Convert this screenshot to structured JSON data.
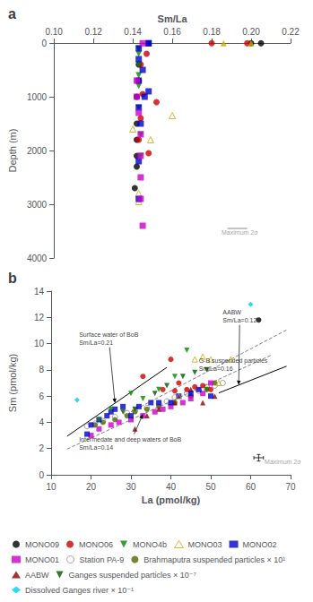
{
  "chart_data": [
    {
      "type": "scatter",
      "title": "a",
      "xlabel": "Sm/La",
      "ylabel": "Depth (m)",
      "xlim": [
        0.1,
        0.22
      ],
      "ylim": [
        4000,
        0
      ],
      "xticks": [
        {
          "value": 0.1,
          "label": "0.10"
        },
        0.12,
        0.14,
        0.16,
        0.18,
        {
          "value": 0.2,
          "label": "0.20"
        },
        0.22
      ],
      "yticks": [
        0,
        1000,
        2000,
        3000,
        4000
      ],
      "grid": false,
      "series": [
        {
          "name": "MONO09",
          "color": "#000000",
          "marker": "circle",
          "x": [
            0.205,
            0.2,
            0.143,
            0.143,
            0.142,
            0.142,
            0.142,
            0.142,
            0.142,
            0.141
          ],
          "values": [
            5,
            5,
            400,
            700,
            1000,
            1500,
            1800,
            2100,
            2300,
            2700
          ]
        },
        {
          "name": "MONO06",
          "color": "#cc0000",
          "marker": "circle",
          "x": [
            0.198,
            0.18,
            0.147,
            0.144,
            0.143,
            0.145,
            0.152,
            0.144,
            0.143,
            0.148
          ],
          "values": [
            5,
            5,
            200,
            400,
            700,
            950,
            1100,
            1400,
            1800,
            2050
          ]
        },
        {
          "name": "MONO4b",
          "color": "#008800",
          "marker": "triangle_down",
          "x": [
            0.143,
            0.143,
            0.143,
            0.143,
            0.143,
            0.143,
            0.144,
            0.144
          ],
          "values": [
            100,
            200,
            400,
            600,
            800,
            1200,
            1700,
            2100
          ]
        },
        {
          "name": "MONO03",
          "color": "#ccaa00",
          "marker": "triangle_up",
          "x": [
            0.186,
            0.2
          ],
          "values": [
            5,
            5
          ]
        },
        {
          "name": "MONO03",
          "color": "#ccaa00",
          "marker": "triangle_up_open",
          "x": [
            0.149,
            0.16,
            0.14,
            0.143,
            0.143
          ],
          "values": [
            1800,
            1350,
            1600,
            2800,
            2950
          ]
        },
        {
          "name": "MONO02",
          "color": "#0000cc",
          "marker": "square",
          "x": [
            0.148,
            0.148,
            0.143,
            0.143,
            0.145,
            0.143,
            0.148,
            0.146,
            0.143,
            0.144,
            0.143,
            0.143
          ],
          "values": [
            5,
            5,
            100,
            300,
            500,
            700,
            900,
            1000,
            1200,
            1500,
            2200,
            2900
          ]
        },
        {
          "name": "MONO01",
          "color": "#cc00cc",
          "marker": "square",
          "x": [
            0.145,
            0.142,
            0.142,
            0.143,
            0.144,
            0.144,
            0.144,
            0.144,
            0.145
          ],
          "values": [
            5,
            700,
            1000,
            1300,
            1700,
            2100,
            2500,
            2900,
            3400
          ]
        },
        {
          "type": "line",
          "color": "#888888",
          "line_style": "solid",
          "x": [
            0.188,
            0.198
          ],
          "values": [
            3450,
            3450
          ]
        }
      ],
      "annotations": [
        {
          "text": "Maximum 2σ",
          "x": 0.185,
          "y": 3600,
          "color": "#888888"
        }
      ]
    },
    {
      "type": "scatter",
      "title": "b",
      "xlabel": "La (pmol/kg)",
      "ylabel": "Sm (pmol/kg)",
      "xlim": [
        10,
        70
      ],
      "ylim": [
        0,
        14
      ],
      "xticks": [
        10,
        20,
        30,
        40,
        50,
        60,
        70
      ],
      "yticks": [
        0,
        2,
        4,
        6,
        8,
        10,
        12,
        14
      ],
      "grid": false,
      "legend": "lower left",
      "series": [
        {
          "type": "line",
          "color": "#000000",
          "line_style": "solid",
          "x": [
            14.0,
            39.0
          ],
          "values": [
            2.94,
            8.19
          ]
        },
        {
          "type": "line",
          "color": "#808080",
          "line_style": "dashed",
          "x": [
            14.0,
            65.0
          ],
          "values": [
            1.96,
            9.1
          ]
        },
        {
          "type": "line",
          "color": "#000000",
          "line_style": "solid",
          "x": [
            52.0,
            69.0
          ],
          "values": [
            6.24,
            8.28
          ]
        },
        {
          "type": "line",
          "color": "#808080",
          "line_style": "dashed",
          "x": [
            30.0,
            69.0
          ],
          "values": [
            4.8,
            11.04
          ]
        },
        {
          "name": "Station PA-9",
          "color": "#888888",
          "marker": "circle_open",
          "x": [
            19.0,
            21.0,
            23.0,
            26.0,
            29.0,
            31.0,
            34.0,
            37.0,
            39.0,
            41.0,
            44.0,
            47.0,
            49.0,
            51.0,
            53.0
          ],
          "values": [
            3.7,
            3.9,
            4.1,
            4.4,
            4.7,
            4.9,
            5.1,
            5.4,
            5.6,
            5.9,
            6.2,
            6.4,
            6.7,
            6.8,
            7.0
          ]
        },
        {
          "name": "Brahmaputra suspended particles × 10¹",
          "color": "#556600",
          "marker": "circle",
          "x": [
            21.0,
            23.0,
            26.0,
            29.0,
            31.0,
            34.0,
            37.0,
            41.0,
            45.0,
            49.0,
            51.0
          ],
          "values": [
            3.8,
            4.0,
            4.2,
            4.5,
            4.8,
            5.0,
            5.2,
            5.5,
            6.0,
            6.5,
            7.0
          ]
        },
        {
          "name": "AABW",
          "color": "#880000",
          "marker": "triangle_up",
          "x": [
            31.0,
            34.0,
            37.0,
            41.0,
            45.0,
            48.0,
            51.0
          ],
          "values": [
            3.5,
            4.5,
            5.0,
            5.5,
            6.5,
            5.5,
            6.0
          ]
        },
        {
          "name": "Ganges suspended particles × 10⁻⁷",
          "color": "#005500",
          "marker": "triangle_down",
          "x": [
            28.0,
            31.0,
            36.0,
            39.0,
            43.0,
            46.0,
            49.0
          ],
          "values": [
            4.8,
            5.0,
            6.2,
            6.8,
            7.5,
            7.8,
            8.0
          ]
        },
        {
          "name": "MONO01",
          "color": "#cc00cc",
          "marker": "square",
          "x": [
            20.0,
            22.0,
            25.0,
            27.0,
            30.0,
            33.0,
            36.0,
            38.0,
            40.0,
            43.0,
            45.0,
            48.0,
            50.0
          ],
          "values": [
            3.0,
            3.5,
            3.8,
            4.0,
            4.2,
            4.5,
            4.8,
            5.0,
            5.2,
            5.5,
            5.8,
            6.2,
            7.0
          ]
        },
        {
          "name": "MONO02",
          "color": "#0000cc",
          "marker": "square",
          "x": [
            19.0,
            20.0,
            22.0,
            24.0,
            25.0,
            26.0,
            28.0,
            30.0,
            32.0,
            35.0,
            37.0,
            40.0,
            42.0,
            45.0,
            47.0,
            50.0
          ],
          "values": [
            3.1,
            3.8,
            4.2,
            4.5,
            4.8,
            5.0,
            5.2,
            4.5,
            5.2,
            5.5,
            5.5,
            5.5,
            6.0,
            6.2,
            6.5,
            6.0
          ]
        },
        {
          "name": "MONO03",
          "color": "#ccaa00",
          "marker": "triangle_up_open",
          "x": [
            42.0,
            46.0,
            48.0,
            50.0,
            52.0,
            55.0
          ],
          "values": [
            6.0,
            8.8,
            9.0,
            8.8,
            7.0,
            8.8
          ]
        },
        {
          "name": "MONO4b",
          "color": "#008800",
          "marker": "triangle_down",
          "x": [
            22.0,
            25.0,
            30.0,
            33.0,
            37.0,
            41.0,
            44.0,
            49.0
          ],
          "values": [
            4.2,
            5.0,
            6.2,
            5.8,
            6.5,
            7.5,
            9.5,
            6.5
          ]
        },
        {
          "name": "MONO06",
          "color": "#cc0000",
          "marker": "circle",
          "x": [
            33.0,
            38.0,
            40.0,
            41.0,
            42.0,
            44.0,
            46.0,
            48.0,
            50.0
          ],
          "values": [
            7.5,
            6.5,
            8.8,
            6.4,
            7.0,
            6.5,
            6.7,
            6.8,
            6.5
          ]
        },
        {
          "name": "MONO09",
          "color": "#000000",
          "marker": "circle",
          "x": [
            62.0
          ],
          "values": [
            11.8
          ]
        },
        {
          "name": "Dissolved Ganges river × 10⁻¹",
          "color": "#00ccee",
          "marker": "diamond",
          "x": [
            16.5,
            60.0
          ],
          "values": [
            5.7,
            13.0
          ]
        }
      ],
      "annotations": [
        {
          "text": "Surface water of BoB\nSm/La=0.21",
          "x": 17,
          "y": 9.8,
          "arrow_x": 26,
          "arrow_y": 5.46
        },
        {
          "text": "AABW\nSm/La=0.12",
          "x": 53,
          "y": 11.5,
          "arrow_x": 57,
          "arrow_y": 6.84
        },
        {
          "text": "G-B suspended particles\nSm/La=0.16",
          "x": 47,
          "y": 7.8,
          "arrow_x": 56,
          "arrow_y": 8.96
        },
        {
          "text": "Intermedate and deep waters of BoB\nSm/La=0.14",
          "x": 17,
          "y": 1.8,
          "arrow_x": 33,
          "arrow_y": 4.62
        },
        {
          "text": "Maximum 2σ",
          "x": 63.5,
          "y": 0.7,
          "color": "#888888"
        }
      ],
      "error_bar": {
        "x": 62,
        "y": 1.3,
        "xerr": 1.2,
        "yerr": 0.25,
        "color": "#000000"
      }
    }
  ]
}
